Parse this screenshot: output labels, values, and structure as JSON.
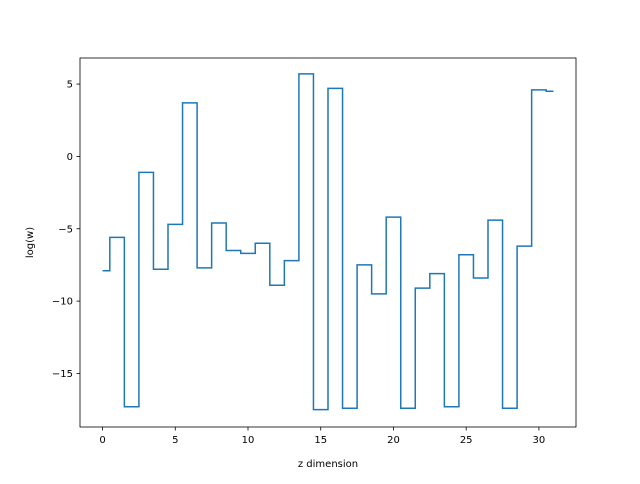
{
  "chart_data": {
    "type": "line",
    "drawstyle": "steps-mid",
    "title": "",
    "xlabel": "z dimension",
    "ylabel": "log(w)",
    "xlim": [
      -1.55,
      32.55
    ],
    "ylim": [
      -18.7,
      6.8
    ],
    "xticks": [
      0,
      5,
      10,
      15,
      20,
      25,
      30
    ],
    "xtick_labels": [
      "0",
      "5",
      "10",
      "15",
      "20",
      "25",
      "30"
    ],
    "yticks": [
      -15,
      -10,
      -5,
      0,
      5
    ],
    "ytick_labels": [
      "−15",
      "−10",
      "−5",
      "0",
      "5"
    ],
    "grid": false,
    "legend": "none",
    "series": [
      {
        "color": "#1f77b4",
        "x": [
          0,
          1,
          2,
          3,
          4,
          5,
          6,
          7,
          8,
          9,
          10,
          11,
          12,
          13,
          14,
          15,
          16,
          17,
          18,
          19,
          20,
          21,
          22,
          23,
          24,
          25,
          26,
          27,
          28,
          29,
          30,
          31
        ],
        "y": [
          -7.9,
          -5.6,
          -17.3,
          -1.1,
          -7.8,
          -4.7,
          3.7,
          -7.7,
          -4.6,
          -6.5,
          -6.7,
          -6.0,
          -8.9,
          -7.2,
          5.7,
          -17.5,
          4.7,
          -17.4,
          -7.5,
          -9.5,
          -4.2,
          -17.4,
          -9.1,
          -8.1,
          -17.3,
          -6.8,
          -8.4,
          -4.4,
          -17.4,
          -6.2,
          4.6,
          4.5
        ]
      }
    ]
  }
}
